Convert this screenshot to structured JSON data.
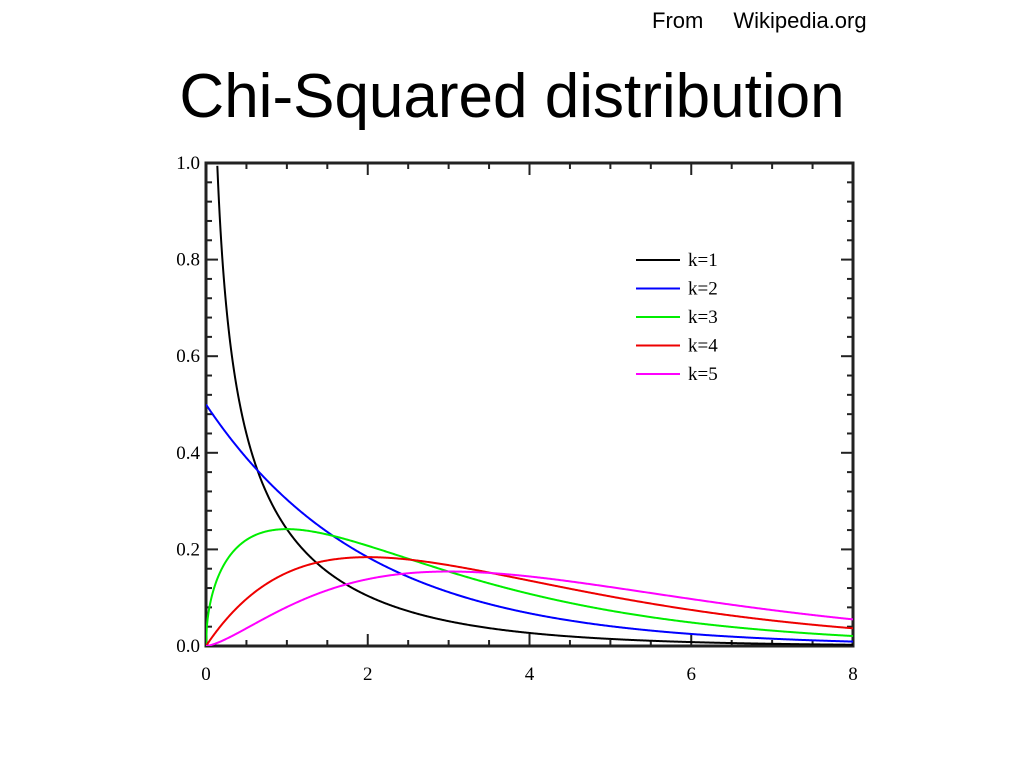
{
  "header": {
    "source_prefix": "From",
    "source_site": "Wikipedia.org",
    "title": "Chi-Squared distribution"
  },
  "chart_data": {
    "type": "line",
    "title": "Chi-Squared distribution",
    "xlabel": "",
    "ylabel": "",
    "xlim": [
      0,
      8
    ],
    "ylim": [
      0,
      1.0
    ],
    "x_ticks": [
      0,
      2,
      4,
      6,
      8
    ],
    "x_tick_labels": [
      "0",
      "2",
      "4",
      "6",
      "8"
    ],
    "y_ticks": [
      0.0,
      0.2,
      0.4,
      0.6,
      0.8,
      1.0
    ],
    "y_tick_labels": [
      "0.0",
      "0.2",
      "0.4",
      "0.6",
      "0.8",
      "1.0"
    ],
    "grid": false,
    "legend_position": "top-right",
    "series": [
      {
        "name": "k=1",
        "k": 1,
        "color": "#000000"
      },
      {
        "name": "k=2",
        "k": 2,
        "color": "#0000ff"
      },
      {
        "name": "k=3",
        "k": 3,
        "color": "#00ee00"
      },
      {
        "name": "k=4",
        "k": 4,
        "color": "#ee0000"
      },
      {
        "name": "k=5",
        "k": 5,
        "color": "#ff00ff"
      }
    ]
  }
}
